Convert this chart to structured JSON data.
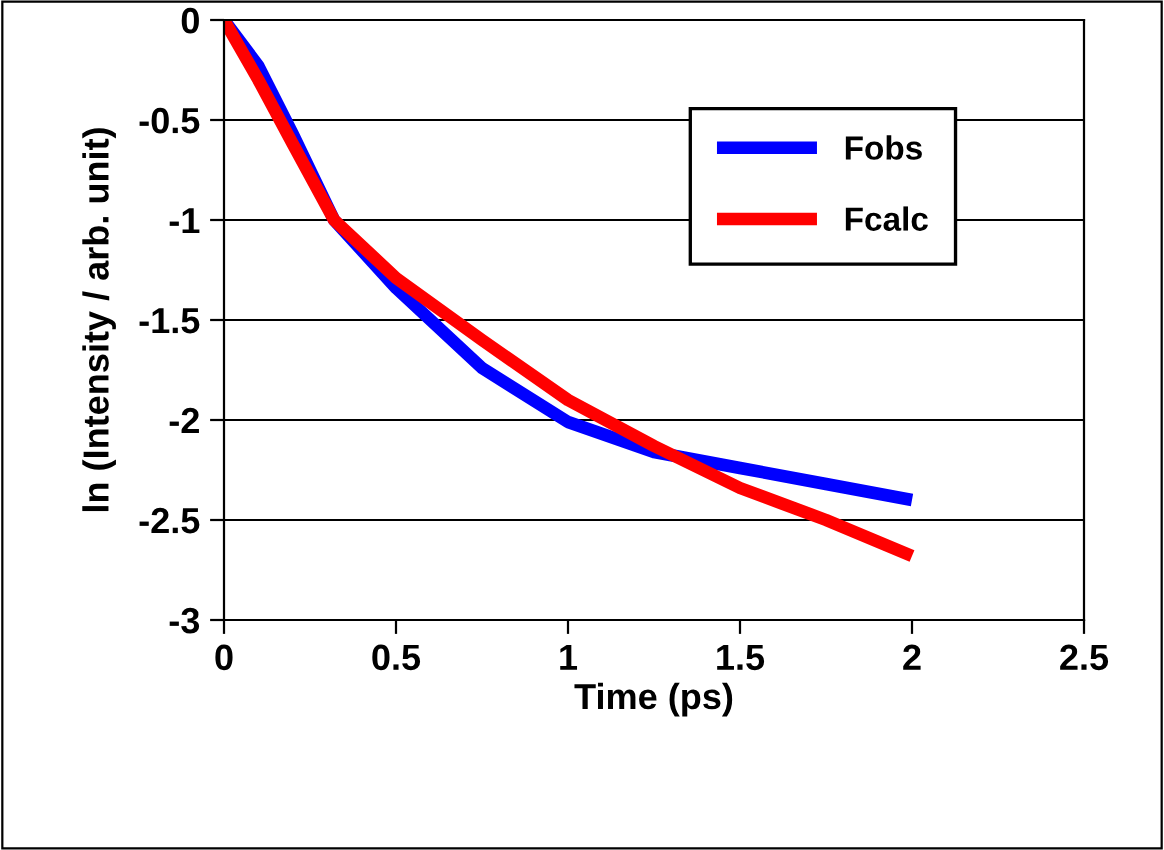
{
  "chart_data": {
    "type": "line",
    "xlabel": "Time (ps)",
    "ylabel": "ln (Intensity / arb. unit)",
    "xlim": [
      0,
      2.5
    ],
    "xticks": [
      0,
      0.5,
      1,
      1.5,
      2,
      2.5
    ],
    "ylim": [
      -3,
      0
    ],
    "yticks": [
      -3,
      -2.5,
      -2,
      -1.5,
      -1,
      -0.5,
      0
    ],
    "grid": "y",
    "legend": "top right",
    "marker": "none",
    "line_style": "solid",
    "series": [
      {
        "name": "Fobs",
        "color": "#0000ff",
        "x": [
          0,
          0.1,
          0.2,
          0.32,
          0.5,
          0.75,
          1.0,
          1.25,
          1.5,
          1.75,
          2.0
        ],
        "values": [
          0,
          -0.23,
          -0.57,
          -1.0,
          -1.34,
          -1.74,
          -2.01,
          -2.16,
          -2.24,
          -2.32,
          -2.4
        ]
      },
      {
        "name": "Fcalc",
        "color": "#ff0000",
        "x": [
          0,
          0.1,
          0.2,
          0.32,
          0.5,
          0.75,
          1.0,
          1.25,
          1.5,
          1.75,
          2.0
        ],
        "values": [
          0,
          -0.3,
          -0.62,
          -1.0,
          -1.29,
          -1.6,
          -1.9,
          -2.13,
          -2.34,
          -2.5,
          -2.68
        ]
      }
    ]
  }
}
